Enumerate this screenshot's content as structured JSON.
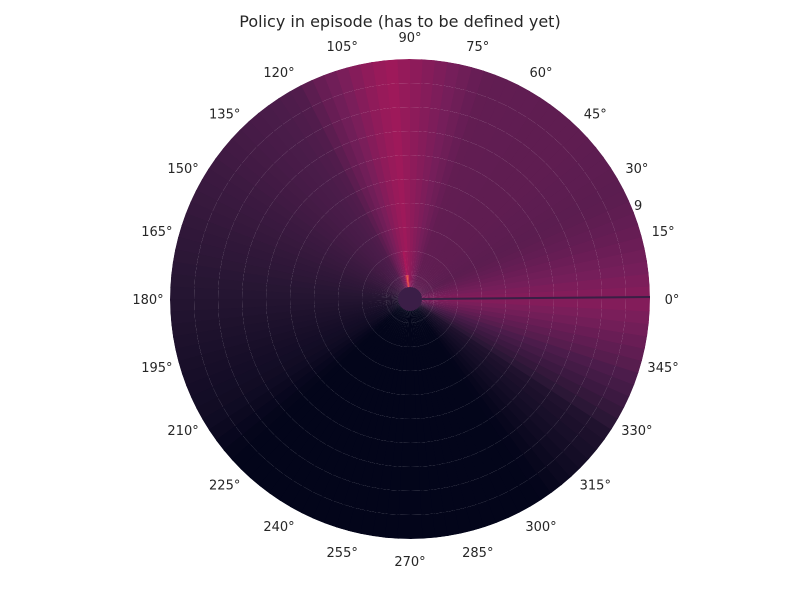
{
  "chart_data": {
    "type": "heatmap",
    "projection": "polar",
    "title": "Policy in episode (has to be defined yet)",
    "grid": false,
    "colormap": "rocket",
    "angular_tick_labels": [
      "0°",
      "15°",
      "30°",
      "45°",
      "60°",
      "75°",
      "90°",
      "105°",
      "120°",
      "135°",
      "150°",
      "165°",
      "180°",
      "195°",
      "210°",
      "225°",
      "240°",
      "255°",
      "270°",
      "285°",
      "300°",
      "315°",
      "330°",
      "345°"
    ],
    "radial_tick_labels": [
      "9"
    ],
    "value_range": [
      0,
      1
    ],
    "hotspots": [
      {
        "theta_deg": 97,
        "width_deg": 10,
        "r_max": 0.34,
        "value": 0.95
      },
      {
        "theta_deg": 95,
        "width_deg": 24,
        "r_max": 1.0,
        "value": 0.62
      },
      {
        "theta_deg": 0,
        "width_deg": 34,
        "r_max": 1.0,
        "value": 0.55
      },
      {
        "theta_deg": 50,
        "width_deg": 70,
        "r_max": 1.0,
        "value": 0.42
      }
    ]
  }
}
